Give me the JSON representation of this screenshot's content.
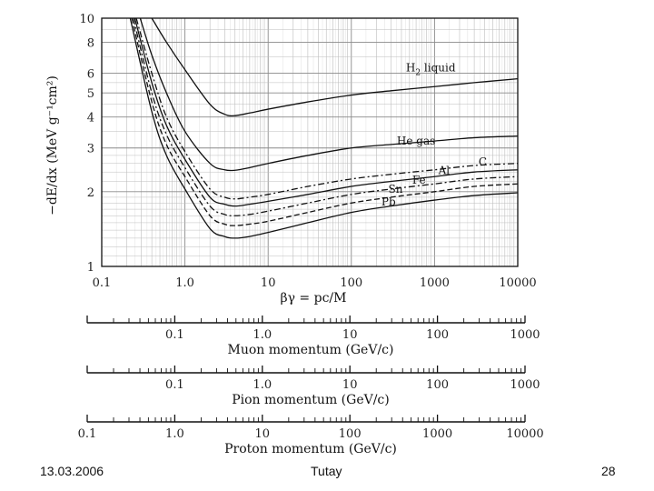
{
  "chart_data": {
    "type": "line",
    "x_scale": "log",
    "y_scale": "log",
    "xlim": [
      0.1,
      10000
    ],
    "ylim": [
      1,
      10
    ],
    "grid": true,
    "xlabel": "βγ = pc/M",
    "ylabel": "−dE/dx (MeV g⁻¹cm²)",
    "x_tick_labels": [
      "0.1",
      "1.0",
      "10",
      "100",
      "1000",
      "10000"
    ],
    "y_tick_labels": [
      "1",
      "2",
      "3",
      "4",
      "5",
      "6",
      "8",
      "10"
    ],
    "series": [
      {
        "name": "H2 liquid",
        "label_text": "H",
        "label_sub": "2",
        "label_rest": " liquid",
        "label_at": [
          900,
          6.1
        ],
        "style": "solid",
        "x": [
          0.4,
          0.6,
          1.0,
          2.0,
          3.0,
          4.0,
          6.0,
          10,
          30,
          100,
          300,
          1000,
          3000,
          10000
        ],
        "y": [
          10,
          8.0,
          6.2,
          4.5,
          4.1,
          4.05,
          4.15,
          4.3,
          4.6,
          4.9,
          5.1,
          5.3,
          5.5,
          5.7
        ]
      },
      {
        "name": "He gas",
        "label_text": "He gas",
        "label_at": [
          600,
          3.1
        ],
        "style": "solid",
        "x": [
          0.29,
          0.4,
          0.6,
          1.0,
          2.0,
          3.0,
          4.0,
          6.0,
          10,
          30,
          100,
          300,
          1000,
          3000,
          10000
        ],
        "y": [
          10,
          7.1,
          5.0,
          3.5,
          2.6,
          2.45,
          2.44,
          2.5,
          2.6,
          2.8,
          3.0,
          3.1,
          3.2,
          3.3,
          3.35
        ]
      },
      {
        "name": "C",
        "label_text": "C",
        "label_at": [
          3800,
          2.55
        ],
        "style": "dashdot",
        "x": [
          0.26,
          0.4,
          0.6,
          1.0,
          2.0,
          3.0,
          4.0,
          6.0,
          10,
          30,
          100,
          300,
          1000,
          3000,
          10000
        ],
        "y": [
          10,
          6.0,
          4.0,
          2.9,
          2.05,
          1.9,
          1.87,
          1.9,
          1.95,
          2.1,
          2.25,
          2.35,
          2.45,
          2.55,
          2.6
        ]
      },
      {
        "name": "Al",
        "label_text": "Al",
        "label_at": [
          1300,
          2.35
        ],
        "style": "solid",
        "x": [
          0.25,
          0.4,
          0.6,
          1.0,
          2.0,
          3.0,
          4.0,
          6.0,
          10,
          30,
          100,
          300,
          1000,
          3000,
          10000
        ],
        "y": [
          10,
          5.5,
          3.7,
          2.7,
          1.9,
          1.78,
          1.75,
          1.78,
          1.83,
          1.95,
          2.1,
          2.2,
          2.3,
          2.4,
          2.45
        ]
      },
      {
        "name": "Fe",
        "label_text": "Fe",
        "label_at": [
          650,
          2.15
        ],
        "style": "dashdot",
        "x": [
          0.24,
          0.4,
          0.6,
          1.0,
          2.0,
          3.0,
          4.0,
          6.0,
          10,
          30,
          100,
          300,
          1000,
          3000,
          10000
        ],
        "y": [
          10,
          5.0,
          3.4,
          2.5,
          1.75,
          1.62,
          1.6,
          1.62,
          1.67,
          1.8,
          1.95,
          2.05,
          2.15,
          2.25,
          2.3
        ]
      },
      {
        "name": "Sn",
        "label_text": "Sn",
        "label_at": [
          340,
          1.98
        ],
        "style": "dashed",
        "x": [
          0.23,
          0.4,
          0.6,
          1.0,
          2.0,
          3.0,
          4.0,
          6.0,
          10,
          30,
          100,
          300,
          1000,
          3000,
          10000
        ],
        "y": [
          10,
          4.6,
          3.1,
          2.3,
          1.6,
          1.48,
          1.46,
          1.48,
          1.52,
          1.65,
          1.8,
          1.9,
          2.0,
          2.1,
          2.15
        ]
      },
      {
        "name": "Pb",
        "label_text": "Pb",
        "label_at": [
          280,
          1.76
        ],
        "style": "solid",
        "x": [
          0.22,
          0.4,
          0.6,
          1.0,
          2.0,
          3.0,
          4.0,
          6.0,
          10,
          30,
          100,
          300,
          1000,
          3000,
          10000
        ],
        "y": [
          10,
          4.2,
          2.8,
          2.05,
          1.42,
          1.32,
          1.3,
          1.32,
          1.37,
          1.5,
          1.65,
          1.75,
          1.85,
          1.93,
          1.98
        ]
      }
    ]
  },
  "momentum_scales": [
    {
      "title": "Muon momentum (GeV/c)",
      "xlim": [
        0.01,
        1000
      ],
      "labels": [
        "0.1",
        "1.0",
        "10",
        "100",
        "1000"
      ]
    },
    {
      "title": "Pion momentum (GeV/c)",
      "xlim": [
        0.01,
        1000
      ],
      "labels": [
        "0.1",
        "1.0",
        "10",
        "100",
        "1000"
      ]
    },
    {
      "title": "Proton momentum (GeV/c)",
      "xlim": [
        0.1,
        10000
      ],
      "labels": [
        "0.1",
        "1.0",
        "10",
        "100",
        "1000",
        "10000"
      ]
    }
  ],
  "footer": {
    "date": "13.03.2006",
    "author": "Tutay",
    "page": "28"
  },
  "colors": {
    "ink": "#111111",
    "grid": "#bdbdbd",
    "grid_major": "#8a8a8a"
  }
}
